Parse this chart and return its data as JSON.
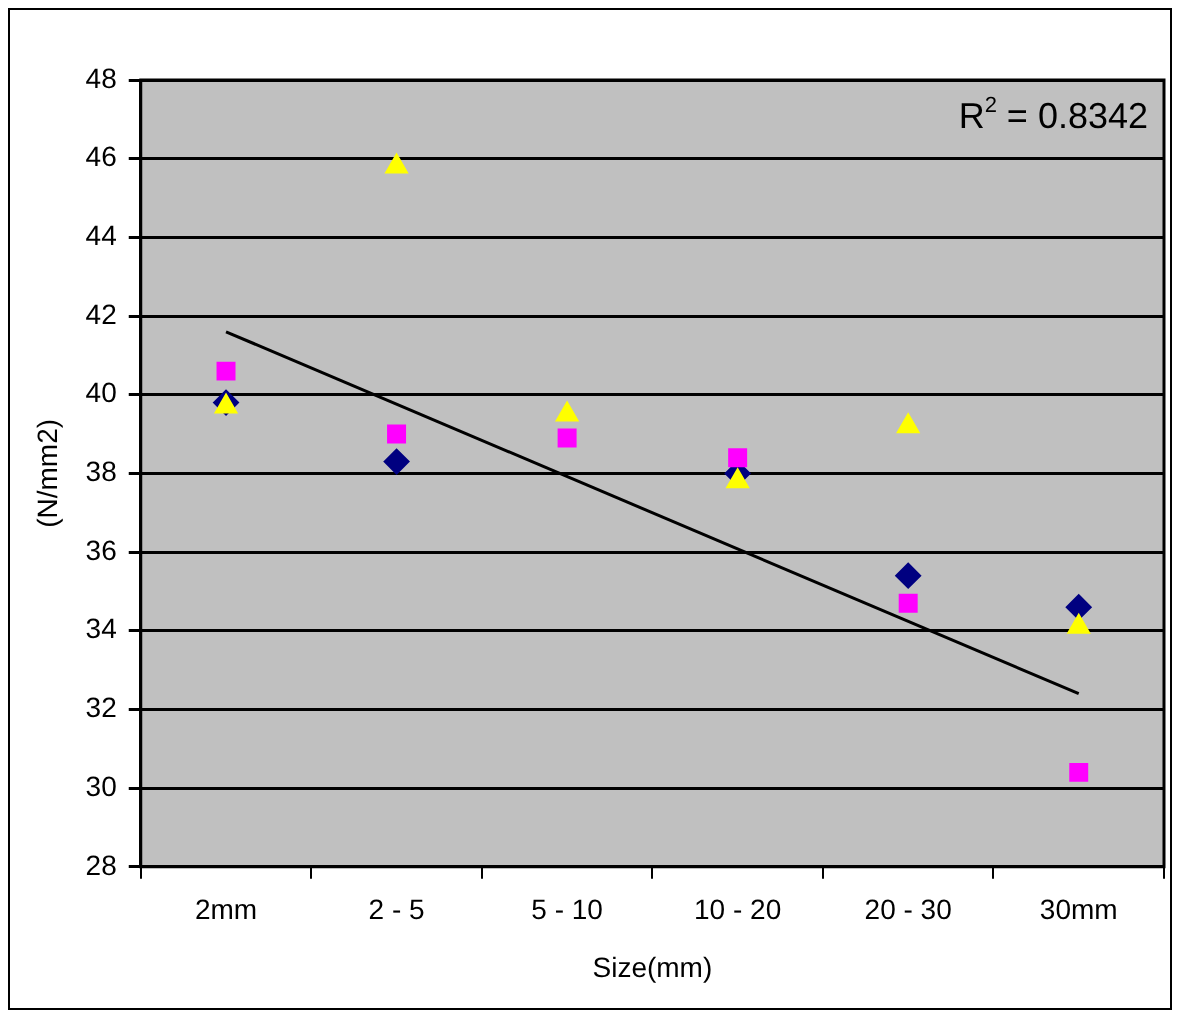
{
  "chart_data": {
    "type": "scatter",
    "categories": [
      "2mm",
      "2 - 5",
      "5 - 10",
      "10 - 20",
      "20 - 30",
      "30mm"
    ],
    "xlabel": "Size(mm)",
    "ylabel": "(N/mm2)",
    "ylim": [
      28,
      48
    ],
    "yticks": [
      28,
      30,
      32,
      34,
      36,
      38,
      40,
      42,
      44,
      46,
      48
    ],
    "grid": "y",
    "legend": false,
    "annotations": [
      "R$^{2}$ = 0.8342"
    ],
    "series": [
      {
        "color": "#000080",
        "marker": "diamond",
        "values": [
          39.8,
          38.3,
          null,
          38.0,
          35.4,
          34.6
        ]
      },
      {
        "color": "#ff00ff",
        "marker": "square",
        "values": [
          40.6,
          39.0,
          38.9,
          38.4,
          34.7,
          30.4
        ]
      },
      {
        "color": "#ffff00",
        "marker": "triangle",
        "values": [
          39.7,
          45.8,
          39.5,
          37.8,
          39.2,
          34.1
        ]
      },
      {
        "type": "line",
        "color": "#000000",
        "marker": "none",
        "line_style": "solid",
        "values": [
          41.6,
          null,
          null,
          null,
          null,
          32.4
        ]
      }
    ]
  }
}
